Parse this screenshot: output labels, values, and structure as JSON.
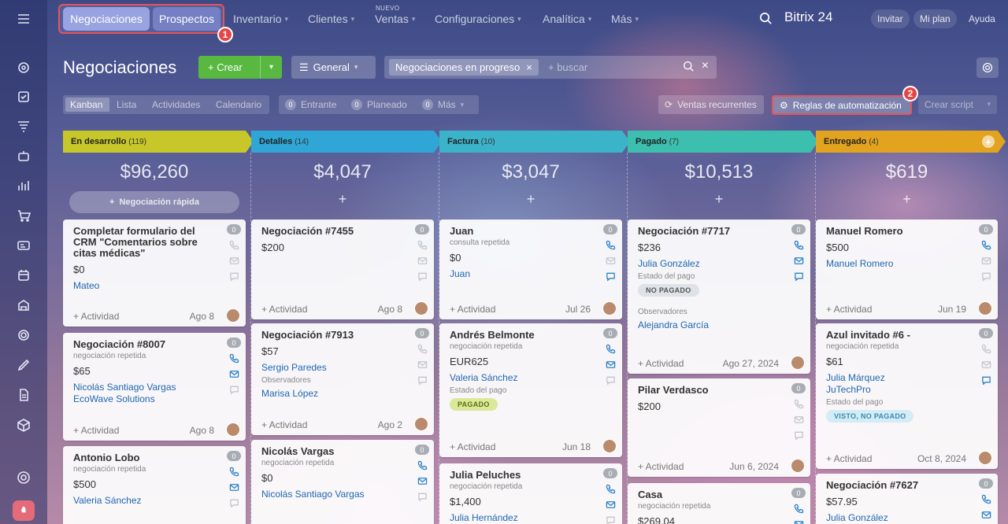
{
  "topbar": {
    "tabs": [
      {
        "label": "Negociaciones"
      },
      {
        "label": "Prospectos"
      }
    ],
    "nav": [
      {
        "label": "Inventario",
        "new": ""
      },
      {
        "label": "Clientes",
        "new": ""
      },
      {
        "label": "Ventas",
        "new": "NUEVO"
      },
      {
        "label": "Configuraciones",
        "new": ""
      },
      {
        "label": "Analítica",
        "new": ""
      },
      {
        "label": "Más",
        "new": ""
      }
    ],
    "logo": "Bitrix 24",
    "invite": "Invitar",
    "plan": "Mi plan",
    "help": "Ayuda",
    "markers": [
      "1",
      "2"
    ]
  },
  "toolbar": {
    "page_title": "Negociaciones",
    "create": "Crear",
    "pipeline": "General",
    "filter_chip": "Negociaciones en progreso",
    "search_placeholder": "+ buscar"
  },
  "views": {
    "modes": [
      "Kanban",
      "Lista",
      "Actividades",
      "Calendario"
    ],
    "counters": [
      {
        "n": "0",
        "label": "Entrante"
      },
      {
        "n": "0",
        "label": "Planeado"
      },
      {
        "n": "0",
        "label": "Más"
      }
    ],
    "recurrentes": "Ventas recurrentes",
    "reglas": "Reglas de automatización",
    "script": "Crear script"
  },
  "kanban": {
    "quick_add": "Negociación rápida",
    "activity": "+ Actividad",
    "columns": [
      {
        "name": "En desarrollo",
        "count": "(119)",
        "sum": "$96,260",
        "color": "#c7c72a"
      },
      {
        "name": "Detalles",
        "count": "(14)",
        "sum": "$4,047",
        "color": "#2fa6d6"
      },
      {
        "name": "Factura",
        "count": "(10)",
        "sum": "$3,047",
        "color": "#3bb3c9"
      },
      {
        "name": "Pagado",
        "count": "(7)",
        "sum": "$10,513",
        "color": "#3cbfae"
      },
      {
        "name": "Entregado",
        "count": "(4)",
        "sum": "$619",
        "color": "#e2a31e"
      }
    ],
    "cards": [
      {
        "title": "Completar formulario del CRM \"Comentarios sobre citas médicas\"",
        "amount": "$0",
        "links": [
          "Mateo"
        ],
        "date": "Ago 8"
      },
      {
        "title": "Negociación #8007",
        "sub": "negociación repetida",
        "amount": "$65",
        "links": [
          "Nicolás Santiago Vargas",
          "EcoWave Solutions"
        ],
        "date": "Ago 8"
      },
      {
        "title": "Antonio Lobo",
        "sub": "negociación repetida",
        "amount": "$500",
        "links": [
          "Valeria Sánchez"
        ]
      },
      {
        "title": "Negociación #7455",
        "amount": "$200",
        "date": "Ago 8"
      },
      {
        "title": "Negociación #7913",
        "amount": "$57",
        "links": [
          "Sergio Paredes"
        ],
        "label": "Observadores",
        "links2": [
          "Marisa López"
        ],
        "date": "Ago 2"
      },
      {
        "title": "Nicolás Vargas",
        "sub": "negociación repetida",
        "amount": "$0",
        "links": [
          "Nicolás Santiago Vargas"
        ]
      },
      {
        "title": "Juan",
        "sub": "consulta repetida",
        "amount": "$0",
        "links": [
          "Juan"
        ],
        "date": "Jul 26"
      },
      {
        "title": "Andrés Belmonte",
        "sub": "negociación repetida",
        "amount": "EUR625",
        "links": [
          "Valeria Sánchez"
        ],
        "label": "Estado del pago",
        "tag": "PAGADO",
        "date": "Jun 18"
      },
      {
        "title": "Julia Peluches",
        "sub": "negociación repetida",
        "amount": "$1,400",
        "links": [
          "Julia Hernández"
        ]
      },
      {
        "title": "Negociación #7717",
        "amount": "$236",
        "links": [
          "Julia González"
        ],
        "label": "Estado del pago",
        "tag": "NO PAGADO",
        "label2": "Observadores",
        "links2": [
          "Alejandra García"
        ],
        "date": "Ago 27, 2024"
      },
      {
        "title": "Pilar Verdasco",
        "amount": "$200",
        "date": "Jun 6, 2024"
      },
      {
        "title": "Casa",
        "sub": "negociación repetida",
        "amount": "$269.04"
      },
      {
        "title": "Manuel Romero",
        "amount": "$500",
        "links": [
          "Manuel Romero"
        ],
        "date": "Jun 19"
      },
      {
        "title": "Azul invitado #6 -",
        "sub": "negociación repetida",
        "amount": "$61",
        "links": [
          "Julia Márquez",
          "JuTechPro"
        ],
        "label": "Estado del pago",
        "tag": "VISTO, NO PAGADO",
        "date": "Oct 8, 2024"
      },
      {
        "title": "Negociación #7627",
        "amount": "$57.95",
        "links": [
          "Julia González"
        ]
      }
    ]
  }
}
